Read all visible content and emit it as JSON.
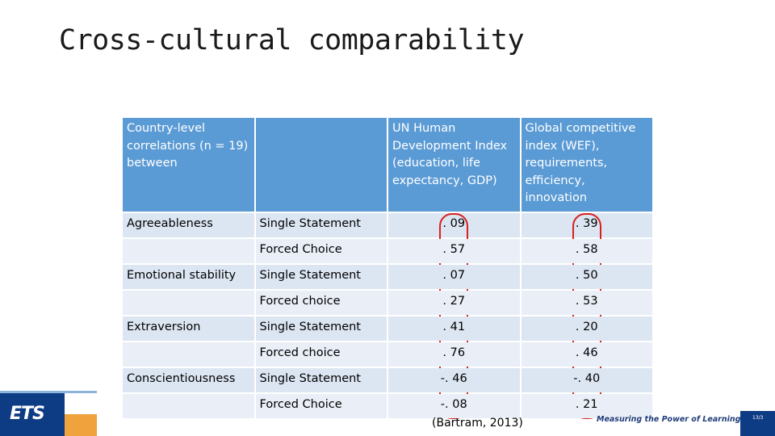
{
  "slide": {
    "title": "Cross-cultural comparability",
    "source": "(Bartram, 2013)",
    "tagline": "Measuring the Power of Learning.",
    "logo_text": "ETS",
    "slide_number": "13/3"
  },
  "table": {
    "headers": [
      "Country-level correlations  (n = 19) between",
      "",
      "UN Human Development Index (education, life expectancy, GDP)",
      "Global competitive index (WEF), requirements, efficiency, innovation"
    ],
    "rows": [
      {
        "trait": "Agreeableness",
        "method": "Single Statement",
        "un": ". 09",
        "wef": ". 39"
      },
      {
        "trait": "",
        "method": "Forced Choice",
        "un": ". 57",
        "wef": ". 58"
      },
      {
        "trait": "Emotional stability",
        "method": "Single Statement",
        "un": ". 07",
        "wef": ". 50"
      },
      {
        "trait": "",
        "method": "Forced choice",
        "un": ". 27",
        "wef": ". 53"
      },
      {
        "trait": "Extraversion",
        "method": "Single Statement",
        "un": ". 41",
        "wef": ". 20"
      },
      {
        "trait": "",
        "method": "Forced choice",
        "un": ". 76",
        "wef": ". 46"
      },
      {
        "trait": "Conscientiousness",
        "method": "Single Statement",
        "un": "-. 46",
        "wef": "-. 40"
      },
      {
        "trait": "",
        "method": "Forced Choice",
        "un": "-. 08",
        "wef": ". 21"
      }
    ]
  },
  "colors": {
    "header_bg": "#5b9bd5",
    "row_band_a": "#dce6f2",
    "row_band_b": "#e9eef7",
    "highlight_circle": "#d9201e",
    "brand_navy": "#0e3c84",
    "brand_orange": "#f0a23c"
  }
}
